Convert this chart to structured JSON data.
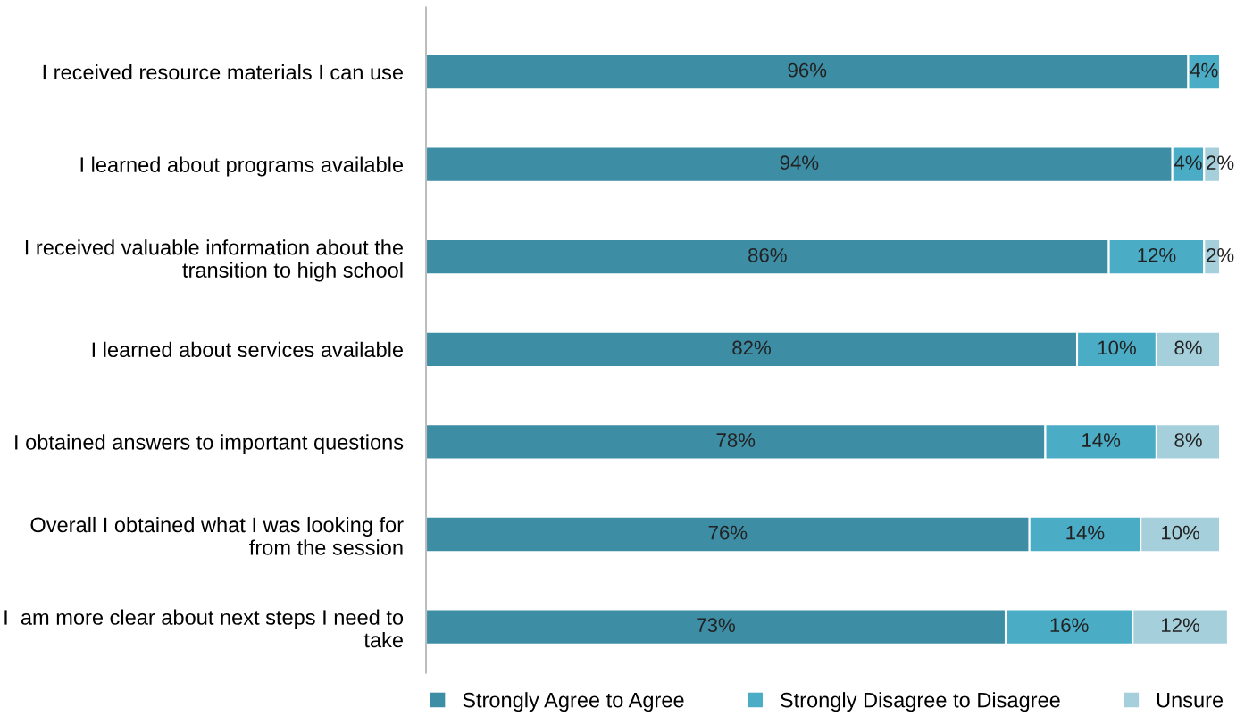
{
  "chart_data": {
    "type": "bar",
    "orientation": "horizontal",
    "stacked": true,
    "legend": "bottom",
    "grid": false,
    "tick_labels": "y",
    "categories": [
      "I received resource materials I can use",
      "I learned about programs available",
      "I received valuable information about the transition to high school",
      "I learned about services available",
      "I obtained answers to important questions",
      "Overall I obtained what I was looking for from the session",
      "I  am more clear about next steps I need to take"
    ],
    "series": [
      {
        "name": "Strongly Agree to Agree",
        "color": "#3d8da5",
        "values": [
          96,
          94,
          86,
          82,
          78,
          76,
          73
        ],
        "value_labels": [
          "96%",
          "94%",
          "86%",
          "82%",
          "78%",
          "76%",
          "73%"
        ]
      },
      {
        "name": "Strongly Disagree to Disagree",
        "color": "#4bacc6",
        "values": [
          4,
          4,
          12,
          10,
          14,
          14,
          16
        ],
        "value_labels": [
          "4%",
          "4%",
          "12%",
          "10%",
          "14%",
          "14%",
          "16%"
        ]
      },
      {
        "name": "Unsure",
        "color": "#a6cfdc",
        "values": [
          null,
          2,
          2,
          8,
          8,
          10,
          12
        ],
        "value_labels": [
          null,
          "2%",
          "2%",
          "8%",
          "8%",
          "10%",
          "12%"
        ]
      }
    ]
  }
}
